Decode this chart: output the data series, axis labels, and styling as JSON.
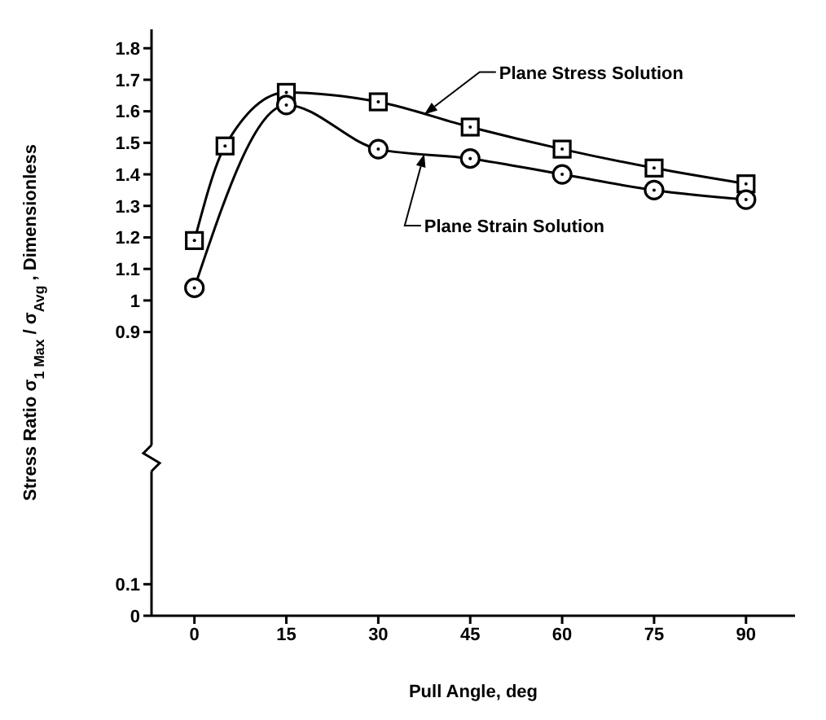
{
  "chart_data": {
    "type": "line",
    "xlabel": "Pull Angle, deg",
    "ylabel": "Stress Ratio   σ$_{1 Max}$ / σ$_{Avg}$ , Dimensionless",
    "series": [
      {
        "name": "Plane Stress Solution",
        "color": "#000000",
        "marker": "square",
        "x": [
          0,
          5,
          15,
          30,
          45,
          60,
          75,
          90
        ],
        "values": [
          1.19,
          1.49,
          1.66,
          1.63,
          1.55,
          1.48,
          1.42,
          1.37
        ]
      },
      {
        "name": "Plane Strain Solution",
        "color": "#000000",
        "marker": "circle",
        "x": [
          0,
          15,
          30,
          45,
          60,
          75,
          90
        ],
        "values": [
          1.04,
          1.62,
          1.48,
          1.45,
          1.4,
          1.35,
          1.32
        ]
      }
    ],
    "xlim": [
      -7,
      98
    ],
    "xticks": [
      0,
      15,
      30,
      45,
      60,
      75,
      90
    ],
    "ylim": [
      0,
      1.86
    ],
    "yticks": [
      0,
      0.1,
      0.9,
      1.0,
      1.1,
      1.2,
      1.3,
      1.4,
      1.5,
      1.6,
      1.7,
      1.8
    ],
    "grid": false,
    "legend": false
  }
}
